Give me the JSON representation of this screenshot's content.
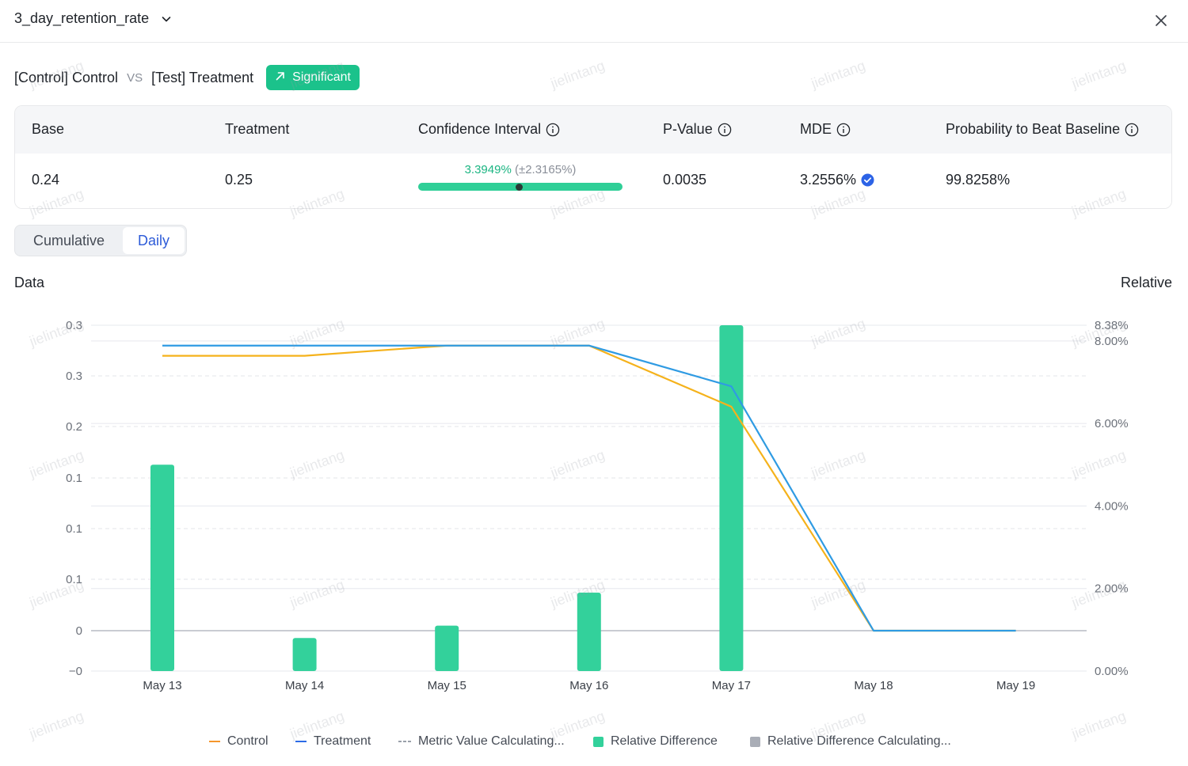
{
  "header": {
    "metric_name": "3_day_retention_rate"
  },
  "comparison": {
    "control_label": "[Control] Control",
    "vs_label": "VS",
    "treatment_label": "[Test] Treatment",
    "badge_label": "Significant"
  },
  "stats": {
    "headers": {
      "base": "Base",
      "treatment": "Treatment",
      "ci": "Confidence Interval",
      "pvalue": "P-Value",
      "mde": "MDE",
      "prob": "Probability to Beat Baseline"
    },
    "values": {
      "base": "0.24",
      "treatment": "0.25",
      "ci_main": "3.3949%",
      "ci_pm": "(±2.3165%)",
      "pvalue": "0.0035",
      "mde": "3.2556%",
      "prob": "99.8258%"
    }
  },
  "tabs": {
    "cumulative": "Cumulative",
    "daily": "Daily",
    "selected": "Daily"
  },
  "axis_titles": {
    "left": "Data",
    "right": "Relative"
  },
  "chart_data": {
    "type": "bar",
    "categories": [
      "May 13",
      "May 14",
      "May 15",
      "May 16",
      "May 17",
      "May 18",
      "May 19"
    ],
    "left_axis_ticks": [
      "0.3",
      "0.3",
      "0.2",
      "0.1",
      "0.1",
      "0.1",
      "0",
      "−0"
    ],
    "right_axis_ticks": [
      "8.38%",
      "8.00%",
      "6.00%",
      "4.00%",
      "2.00%",
      "0.00%"
    ],
    "right_axis_range": [
      0,
      8.38
    ],
    "left_axis_range": [
      -0.04,
      0.3
    ],
    "series": [
      {
        "name": "Control",
        "kind": "line",
        "color": "#f5b21b",
        "values": [
          0.27,
          0.27,
          0.28,
          0.28,
          0.22,
          0.0,
          0.0
        ]
      },
      {
        "name": "Treatment",
        "kind": "line",
        "color": "#2f9be3",
        "values": [
          0.28,
          0.28,
          0.28,
          0.28,
          0.24,
          0.0,
          0.0
        ]
      },
      {
        "name": "Relative Difference",
        "kind": "bar",
        "color": "#33d19b",
        "values_percent": [
          5.0,
          0.8,
          1.1,
          1.9,
          8.38
        ]
      }
    ],
    "legend": [
      {
        "name": "Control",
        "style": "line",
        "color": "#f5962b"
      },
      {
        "name": "Treatment",
        "style": "line",
        "color": "#2c6be6"
      },
      {
        "name": "Metric Value Calculating...",
        "style": "dash",
        "color": "#9aa0aa"
      },
      {
        "name": "Relative Difference",
        "style": "square",
        "color": "#33d19b"
      },
      {
        "name": "Relative Difference Calculating...",
        "style": "square",
        "color": "#a9adb6"
      }
    ],
    "legend_position": "bottom-center",
    "grid": true
  },
  "watermark": "jielintang"
}
